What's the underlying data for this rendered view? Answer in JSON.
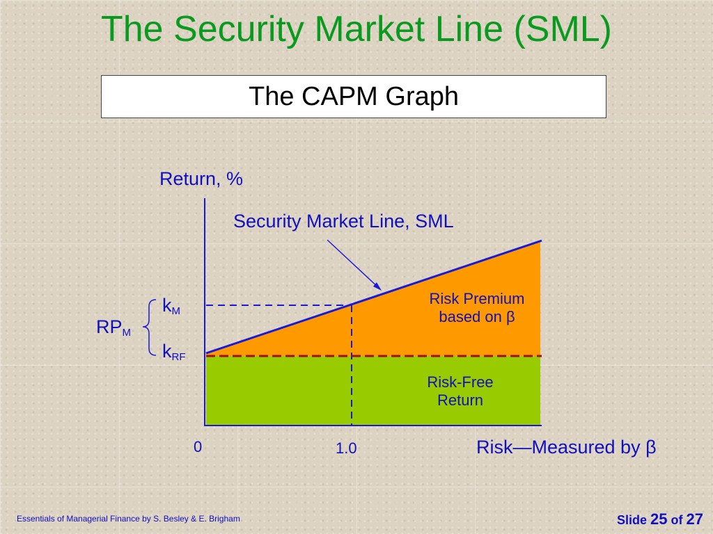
{
  "slide": {
    "title": "The Security Market Line (SML)",
    "subtitle": "The CAPM Graph"
  },
  "graph": {
    "y_axis_label": "Return, %",
    "x_axis_label": "Risk—Measured by β",
    "sml_label": "Security Market Line, SML",
    "origin_label": "0",
    "beta_tick_label": "1.0",
    "k_m_main": "k",
    "k_m_sub": "M",
    "k_rf_main": "k",
    "k_rf_sub": "RF",
    "rp_m_main": "RP",
    "rp_m_sub": "M",
    "risk_premium_line1": "Risk Premium",
    "risk_premium_line2": "based on β",
    "risk_free_line1": "Risk-Free",
    "risk_free_line2": "Return",
    "colors": {
      "risk_premium_fill": "#ff9900",
      "risk_free_fill": "#99cc00",
      "sml_line": "#1a1ad6",
      "rf_dashed_line": "#a01010",
      "axis": "#1a1ad6"
    }
  },
  "footer": {
    "source": "Essentials of Managerial Finance by S. Besley & E. Brigham",
    "slide_word": "Slide",
    "slide_number": "25",
    "of_word": "of",
    "slide_total": "27"
  }
}
